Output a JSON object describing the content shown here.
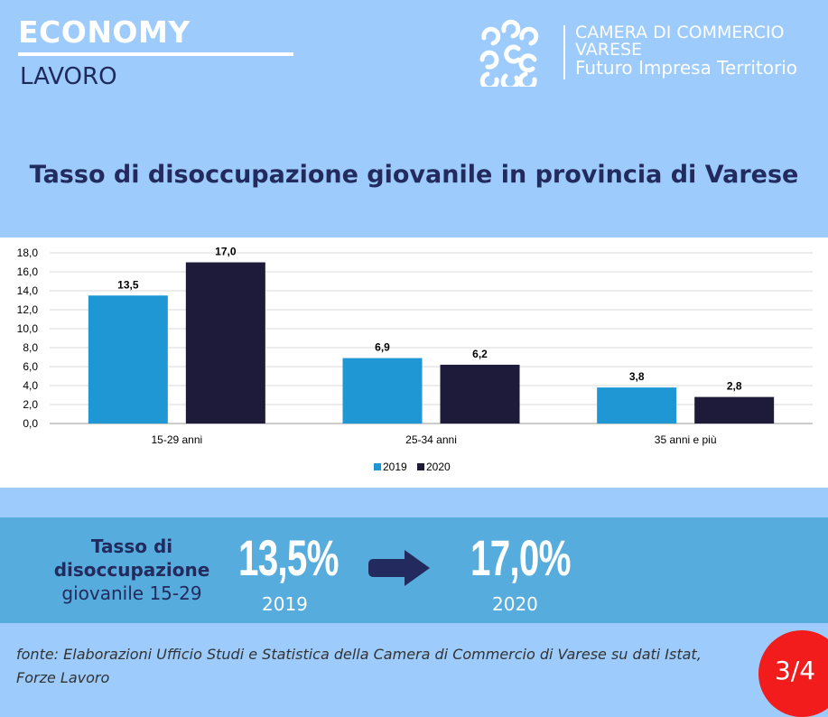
{
  "header": {
    "section": "ECONOMY",
    "subsection": "LAVORO",
    "org_line1": "CAMERA DI COMMERCIO",
    "org_line2": "VARESE",
    "org_line3": "Futuro Impresa Territorio"
  },
  "title": "Tasso di disoccupazione giovanile in provincia di Varese",
  "chart_data": {
    "type": "bar",
    "categories": [
      "15-29 anni",
      "25-34 anni",
      "35 anni e più"
    ],
    "series": [
      {
        "name": "2019",
        "color": "#1f97d4",
        "values": [
          13.5,
          6.9,
          3.8
        ],
        "labels": [
          "13,5",
          "6,9",
          "3,8"
        ]
      },
      {
        "name": "2020",
        "color": "#1e1b3a",
        "values": [
          17.0,
          6.2,
          2.8
        ],
        "labels": [
          "17,0",
          "6,2",
          "2,8"
        ]
      }
    ],
    "ylim": [
      0,
      18
    ],
    "yticks": [
      "0,0",
      "2,0",
      "4,0",
      "6,0",
      "8,0",
      "10,0",
      "12,0",
      "14,0",
      "16,0",
      "18,0"
    ],
    "grid": true,
    "legend": "bottom-center"
  },
  "highlight": {
    "label_line1": "Tasso di",
    "label_line2": "disoccupazione",
    "label_line3": "giovanile 15-29",
    "value_2019": "13,5%",
    "year_2019": "2019",
    "value_2020": "17,0%",
    "year_2020": "2020",
    "arrow_color": "#232a5e"
  },
  "footer": {
    "source": "fonte: Elaborazioni Ufficio Studi e Statistica della Camera di Commercio di Varese su dati Istat, Forze Lavoro",
    "page": "3/4"
  }
}
